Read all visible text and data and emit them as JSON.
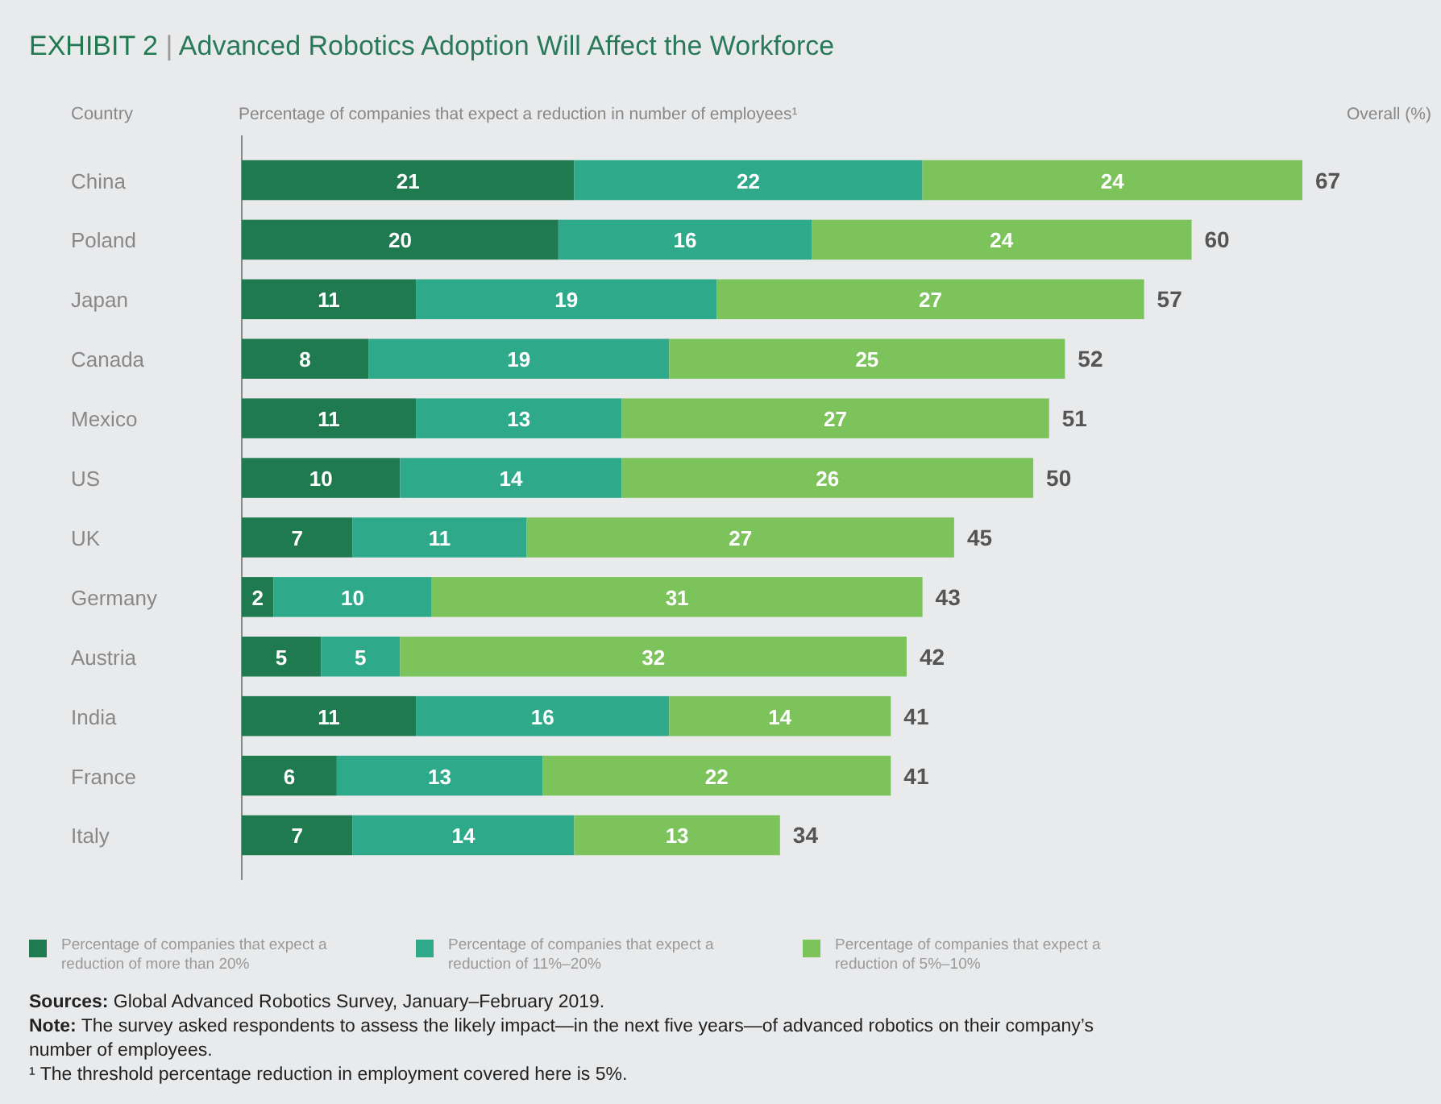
{
  "chart_data": {
    "type": "bar",
    "orientation": "horizontal",
    "stacked": true,
    "data_labels": true,
    "legend": "bottom",
    "title": "EXHIBIT 2 | Advanced Robotics Adoption Will Affect the Workforce",
    "ylabel": "Country",
    "xlabel": "Percentage of companies that expect a reduction in number of employees¹",
    "legend_title": "Overall (%)",
    "categories": [
      "China",
      "Poland",
      "Japan",
      "Canada",
      "Mexico",
      "US",
      "UK",
      "Germany",
      "Austria",
      "India",
      "France",
      "Italy"
    ],
    "series": [
      {
        "name": "Percentage of companies that expect a reduction of more than 20%",
        "color": "#1f7a50",
        "values": [
          21,
          20,
          11,
          8,
          11,
          10,
          7,
          2,
          5,
          11,
          6,
          7
        ]
      },
      {
        "name": "Percentage of companies that expect a reduction of 11%–20%",
        "color": "#2ea98a",
        "values": [
          22,
          16,
          19,
          19,
          13,
          14,
          11,
          10,
          5,
          16,
          13,
          14
        ]
      },
      {
        "name": "Percentage of companies that expect a reduction of 5%–10%",
        "color": "#7bc35a",
        "values": [
          24,
          24,
          27,
          25,
          27,
          26,
          27,
          31,
          32,
          14,
          22,
          13
        ]
      }
    ],
    "totals": [
      "67",
      "60",
      "57",
      "52",
      "51",
      "50",
      "45",
      "43",
      "42",
      "41",
      "41",
      "34"
    ],
    "annotations": [
      "Sources: Global Advanced Robotics Survey, January–February 2019.",
      "Note: The survey asked respondents to assess the likely impact—in the next five years—of advanced robotics on their company’s number of employees.",
      "¹ The threshold percentage reduction in employment covered here is 5%."
    ]
  }
}
